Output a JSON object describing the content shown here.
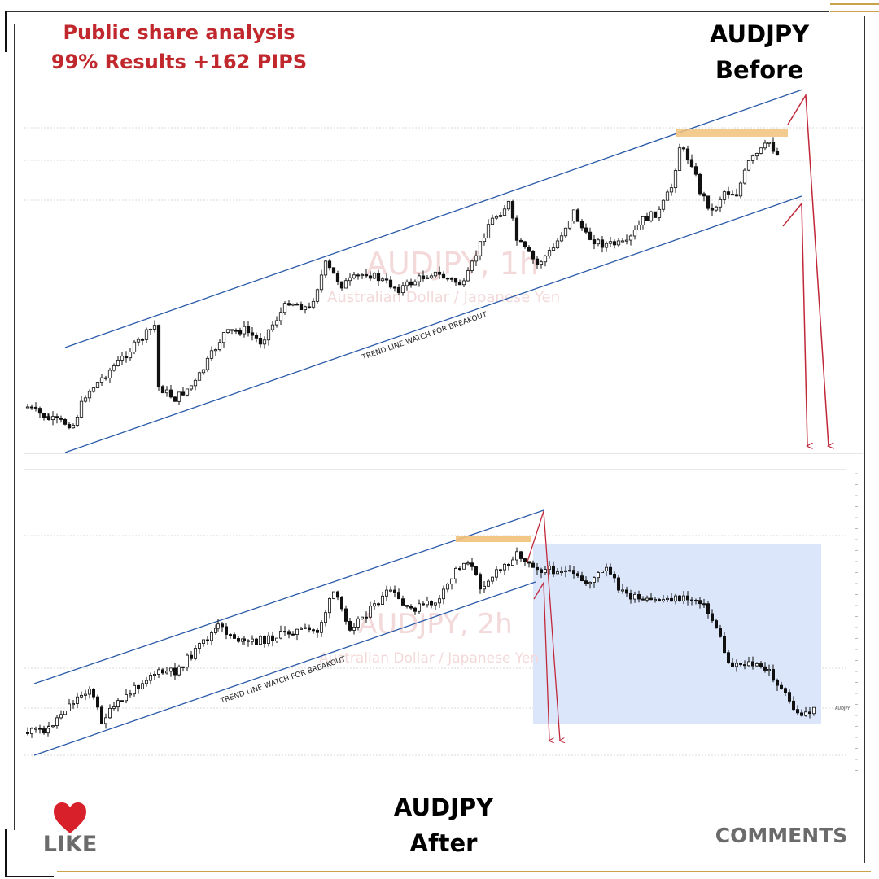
{
  "header": {
    "line1": "Public share analysis",
    "line2": "99% Results +162 PIPS",
    "color": "#c0282d"
  },
  "before_label": {
    "line1": "AUDJPY",
    "line2": "Before"
  },
  "after_label": {
    "line1": "AUDJPY",
    "line2": "After"
  },
  "top_chart": {
    "watermark_symbol": "AUDJPY, 1h",
    "watermark_desc": "Australian Dollar / Japanese Yen",
    "annotation": "TREND LINE WATCH FOR BREAKOUT",
    "trendline_color": "#2a5aa8",
    "resistance_color": "#f2c27a",
    "arrow_color": "#c0283a"
  },
  "bottom_chart": {
    "watermark_symbol": "AUDJPY, 2h",
    "watermark_desc": "Australian Dollar / Japanese Yen",
    "annotation": "TREND LINE WATCH FOR BREAKOUT",
    "price_tag": "AUDJPY",
    "result_zone_color": "#dce6fb"
  },
  "social": {
    "like_label": "LIKE",
    "comments_label": "COMMENTS",
    "heart_color": "#d8202b"
  }
}
